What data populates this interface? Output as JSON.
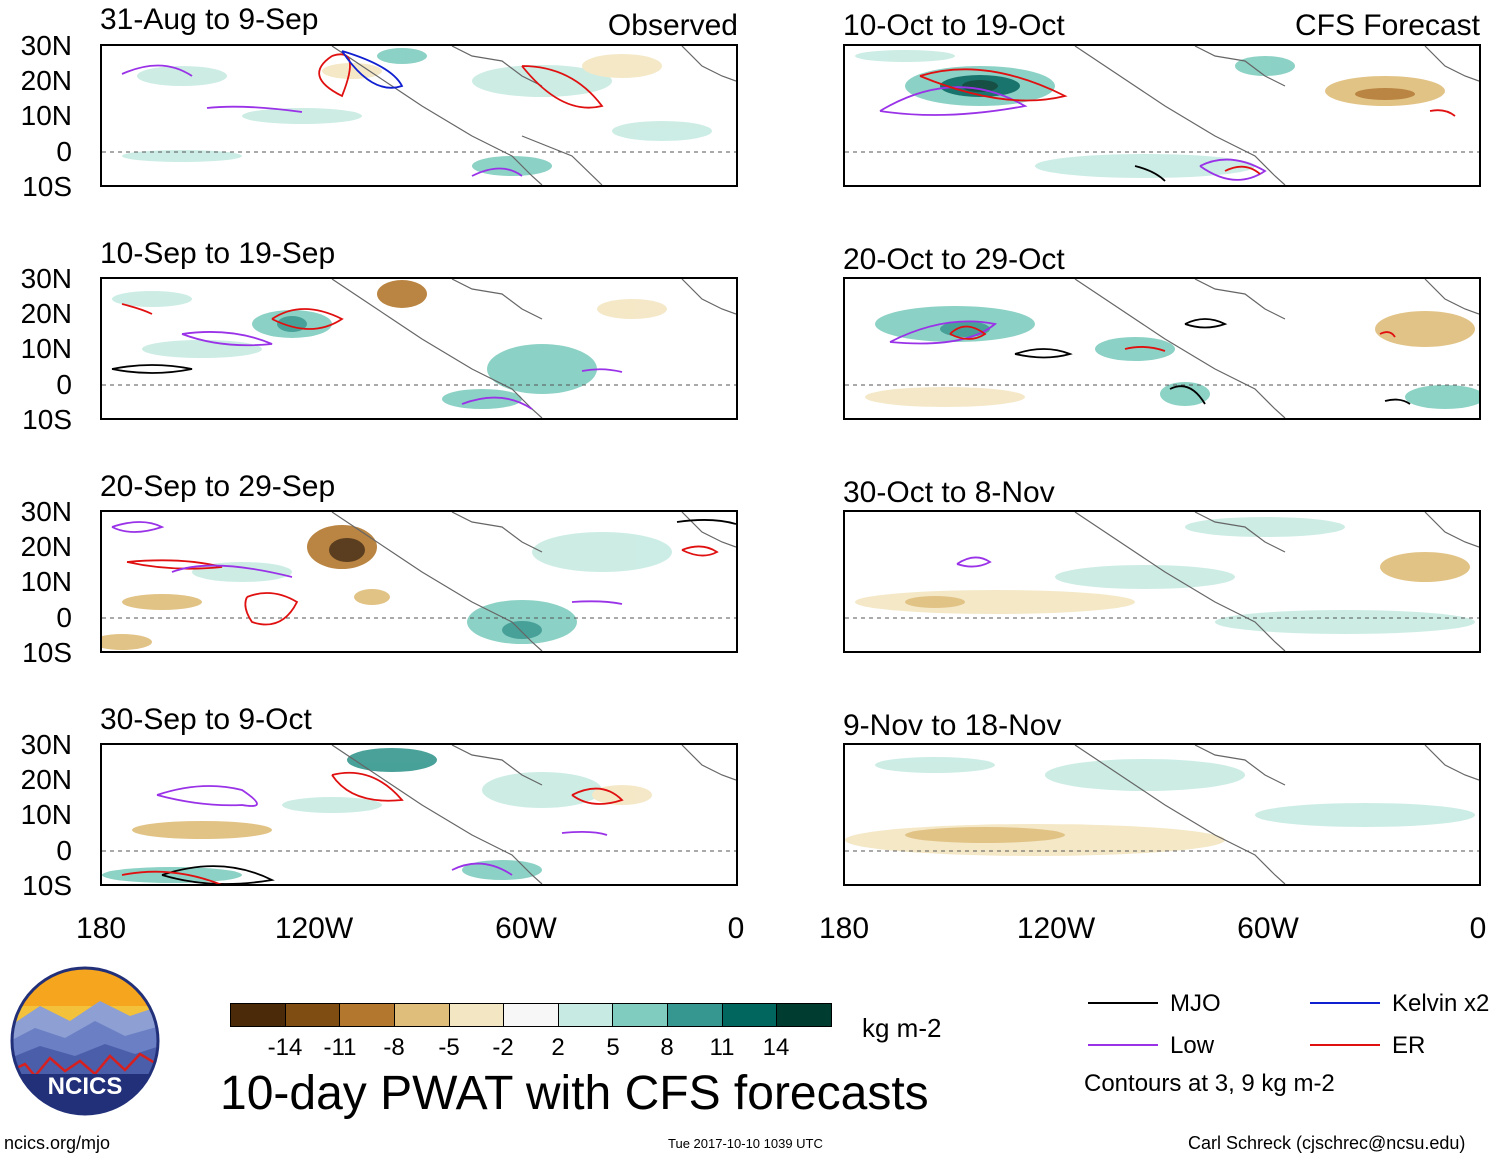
{
  "panels": [
    {
      "title": "31-Aug to 9-Sep",
      "tag": "Observed"
    },
    {
      "title": "10-Sep to 19-Sep",
      "tag": ""
    },
    {
      "title": "20-Sep to 29-Sep",
      "tag": ""
    },
    {
      "title": "30-Sep to 9-Oct",
      "tag": ""
    },
    {
      "title": "10-Oct to 19-Oct",
      "tag": "CFS Forecast"
    },
    {
      "title": "20-Oct to 29-Oct",
      "tag": ""
    },
    {
      "title": "30-Oct to 8-Nov",
      "tag": ""
    },
    {
      "title": "9-Nov to 18-Nov",
      "tag": ""
    }
  ],
  "lat_labels": [
    "30N",
    "20N",
    "10N",
    "0",
    "10S"
  ],
  "lon_labels": [
    "180",
    "120W",
    "60W",
    "0"
  ],
  "colorbar": {
    "labels": [
      "-14",
      "-11",
      "-8",
      "-5",
      "-2",
      "2",
      "5",
      "8",
      "11",
      "14"
    ],
    "colors": [
      "#4a2a08",
      "#7f4d12",
      "#b3782e",
      "#dfbd7a",
      "#f3e6c2",
      "#f7f7f7",
      "#c7ebe2",
      "#80cdbf",
      "#35978f",
      "#01665e",
      "#003c30"
    ],
    "unit": "kg m-2"
  },
  "title": "10-day PWAT with CFS forecasts",
  "legend": {
    "items": [
      {
        "label": "MJO",
        "color": "#000000"
      },
      {
        "label": "Kelvin x2",
        "color": "#1020d0"
      },
      {
        "label": "Low",
        "color": "#9a32e8"
      },
      {
        "label": "ER",
        "color": "#e01010"
      }
    ],
    "note": "Contours at 3, 9 kg m-2"
  },
  "logo": {
    "text": "NCICS"
  },
  "footer": {
    "url": "ncics.org/mjo",
    "timestamp": "Tue 2017-10-10 1039 UTC",
    "credit": "Carl Schreck (cjschrec@ncsu.edu)"
  }
}
